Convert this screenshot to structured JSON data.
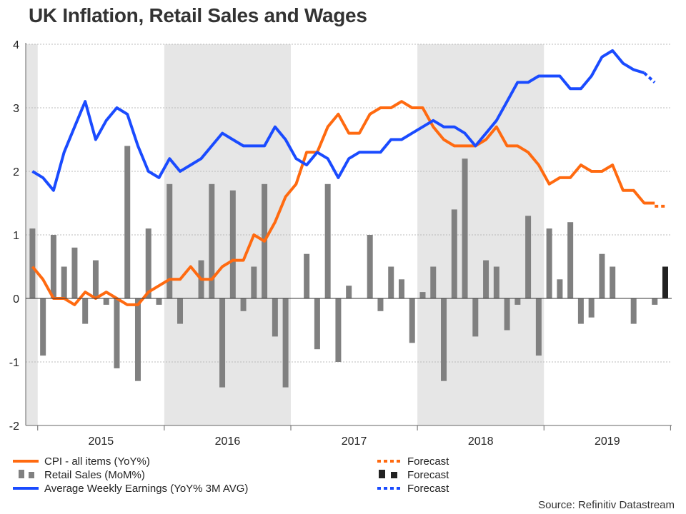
{
  "chart_data": {
    "type": "bar+line",
    "title": "UK Inflation, Retail Sales and Wages",
    "source": "Source: Refinitiv Datastream",
    "ylim": [
      -2,
      4
    ],
    "yticks": [
      "-2",
      "-1",
      "0",
      "1",
      "2",
      "3",
      "4"
    ],
    "year_labels": [
      "2015",
      "2016",
      "2017",
      "2018",
      "2019"
    ],
    "start_month": "2014-12",
    "end_month": "2019-12",
    "shaded_years": [
      "2014",
      "2016",
      "2018"
    ],
    "grid": true,
    "legend_position": "bottom",
    "colors": {
      "cpi": "#ff6a10",
      "retail": "#808080",
      "retail_forecast": "#222222",
      "earnings": "#1a4bff",
      "shade": "#e6e6e6",
      "grid": "#bbbbbb"
    },
    "legend": {
      "cpi": "CPI - all items (YoY%)",
      "retail": "Retail Sales (MoM%)",
      "earnings": "Average Weekly Earnings (YoY% 3M AVG)",
      "forecast": "Forecast"
    },
    "series": [
      {
        "name": "CPI - all items (YoY%)",
        "type": "line",
        "x": [
          "2014-12",
          "2015-01",
          "2015-02",
          "2015-03",
          "2015-04",
          "2015-05",
          "2015-06",
          "2015-07",
          "2015-08",
          "2015-09",
          "2015-10",
          "2015-11",
          "2015-12",
          "2016-01",
          "2016-02",
          "2016-03",
          "2016-04",
          "2016-05",
          "2016-06",
          "2016-07",
          "2016-08",
          "2016-09",
          "2016-10",
          "2016-11",
          "2016-12",
          "2017-01",
          "2017-02",
          "2017-03",
          "2017-04",
          "2017-05",
          "2017-06",
          "2017-07",
          "2017-08",
          "2017-09",
          "2017-10",
          "2017-11",
          "2017-12",
          "2018-01",
          "2018-02",
          "2018-03",
          "2018-04",
          "2018-05",
          "2018-06",
          "2018-07",
          "2018-08",
          "2018-09",
          "2018-10",
          "2018-11",
          "2018-12",
          "2019-01",
          "2019-02",
          "2019-03",
          "2019-04",
          "2019-05",
          "2019-06",
          "2019-07",
          "2019-08",
          "2019-09",
          "2019-10",
          "2019-11"
        ],
        "values": [
          0.5,
          0.3,
          0.0,
          0.0,
          -0.1,
          0.1,
          0.0,
          0.1,
          0.0,
          -0.1,
          -0.1,
          0.1,
          0.2,
          0.3,
          0.3,
          0.5,
          0.3,
          0.3,
          0.5,
          0.6,
          0.6,
          1.0,
          0.9,
          1.2,
          1.6,
          1.8,
          2.3,
          2.3,
          2.7,
          2.9,
          2.6,
          2.6,
          2.9,
          3.0,
          3.0,
          3.1,
          3.0,
          3.0,
          2.7,
          2.5,
          2.4,
          2.4,
          2.4,
          2.5,
          2.7,
          2.4,
          2.4,
          2.3,
          2.1,
          1.8,
          1.9,
          1.9,
          2.1,
          2.0,
          2.0,
          2.1,
          1.7,
          1.7,
          1.5,
          1.5
        ]
      },
      {
        "name": "Forecast",
        "type": "line-forecast",
        "x": [
          "2019-11",
          "2019-12"
        ],
        "values": [
          1.45,
          1.45
        ]
      },
      {
        "name": "Retail Sales (MoM%)",
        "type": "bar",
        "x": [
          "2014-12",
          "2015-01",
          "2015-02",
          "2015-03",
          "2015-04",
          "2015-05",
          "2015-06",
          "2015-07",
          "2015-08",
          "2015-09",
          "2015-10",
          "2015-11",
          "2015-12",
          "2016-01",
          "2016-02",
          "2016-03",
          "2016-04",
          "2016-05",
          "2016-06",
          "2016-07",
          "2016-08",
          "2016-09",
          "2016-10",
          "2016-11",
          "2016-12",
          "2017-01",
          "2017-02",
          "2017-03",
          "2017-04",
          "2017-05",
          "2017-06",
          "2017-07",
          "2017-08",
          "2017-09",
          "2017-10",
          "2017-11",
          "2017-12",
          "2018-01",
          "2018-02",
          "2018-03",
          "2018-04",
          "2018-05",
          "2018-06",
          "2018-07",
          "2018-08",
          "2018-09",
          "2018-10",
          "2018-11",
          "2018-12",
          "2019-01",
          "2019-02",
          "2019-03",
          "2019-04",
          "2019-05",
          "2019-06",
          "2019-07",
          "2019-08",
          "2019-09",
          "2019-10",
          "2019-11"
        ],
        "values": [
          1.1,
          -0.9,
          1.0,
          0.5,
          0.8,
          -0.4,
          0.6,
          -0.1,
          -1.1,
          2.4,
          -1.3,
          1.1,
          -0.1,
          1.8,
          -0.4,
          0.0,
          0.6,
          1.8,
          -1.4,
          1.7,
          -0.2,
          0.5,
          1.8,
          -0.6,
          -1.4,
          0.0,
          0.7,
          -0.8,
          1.8,
          -1.0,
          0.2,
          0.0,
          1.0,
          -0.2,
          0.5,
          0.3,
          -0.7,
          0.1,
          0.5,
          -1.3,
          1.4,
          2.2,
          -0.6,
          0.6,
          0.5,
          -0.5,
          -0.1,
          1.3,
          -0.9,
          1.1,
          0.3,
          1.2,
          -0.4,
          -0.3,
          0.7,
          0.5,
          0.0,
          -0.4,
          0.0,
          -0.1
        ]
      },
      {
        "name": "Forecast",
        "type": "bar-forecast",
        "x": [
          "2019-12"
        ],
        "values": [
          0.5
        ]
      },
      {
        "name": "Average Weekly Earnings (YoY% 3M AVG)",
        "type": "line",
        "x": [
          "2014-12",
          "2015-01",
          "2015-02",
          "2015-03",
          "2015-04",
          "2015-05",
          "2015-06",
          "2015-07",
          "2015-08",
          "2015-09",
          "2015-10",
          "2015-11",
          "2015-12",
          "2016-01",
          "2016-02",
          "2016-03",
          "2016-04",
          "2016-05",
          "2016-06",
          "2016-07",
          "2016-08",
          "2016-09",
          "2016-10",
          "2016-11",
          "2016-12",
          "2017-01",
          "2017-02",
          "2017-03",
          "2017-04",
          "2017-05",
          "2017-06",
          "2017-07",
          "2017-08",
          "2017-09",
          "2017-10",
          "2017-11",
          "2017-12",
          "2018-01",
          "2018-02",
          "2018-03",
          "2018-04",
          "2018-05",
          "2018-06",
          "2018-07",
          "2018-08",
          "2018-09",
          "2018-10",
          "2018-11",
          "2018-12",
          "2019-01",
          "2019-02",
          "2019-03",
          "2019-04",
          "2019-05",
          "2019-06",
          "2019-07",
          "2019-08",
          "2019-09",
          "2019-10"
        ],
        "values": [
          2.0,
          1.9,
          1.7,
          2.3,
          2.7,
          3.1,
          2.5,
          2.8,
          3.0,
          2.9,
          2.4,
          2.0,
          1.9,
          2.2,
          2.0,
          2.1,
          2.2,
          2.4,
          2.6,
          2.5,
          2.4,
          2.4,
          2.4,
          2.7,
          2.5,
          2.2,
          2.1,
          2.3,
          2.2,
          1.9,
          2.2,
          2.3,
          2.3,
          2.3,
          2.5,
          2.5,
          2.6,
          2.7,
          2.8,
          2.7,
          2.7,
          2.6,
          2.4,
          2.6,
          2.8,
          3.1,
          3.4,
          3.4,
          3.5,
          3.5,
          3.5,
          3.3,
          3.3,
          3.5,
          3.8,
          3.9,
          3.7,
          3.6,
          3.55
        ]
      },
      {
        "name": "Forecast",
        "type": "line-forecast",
        "x": [
          "2019-10",
          "2019-11"
        ],
        "values": [
          3.55,
          3.4
        ]
      }
    ]
  }
}
